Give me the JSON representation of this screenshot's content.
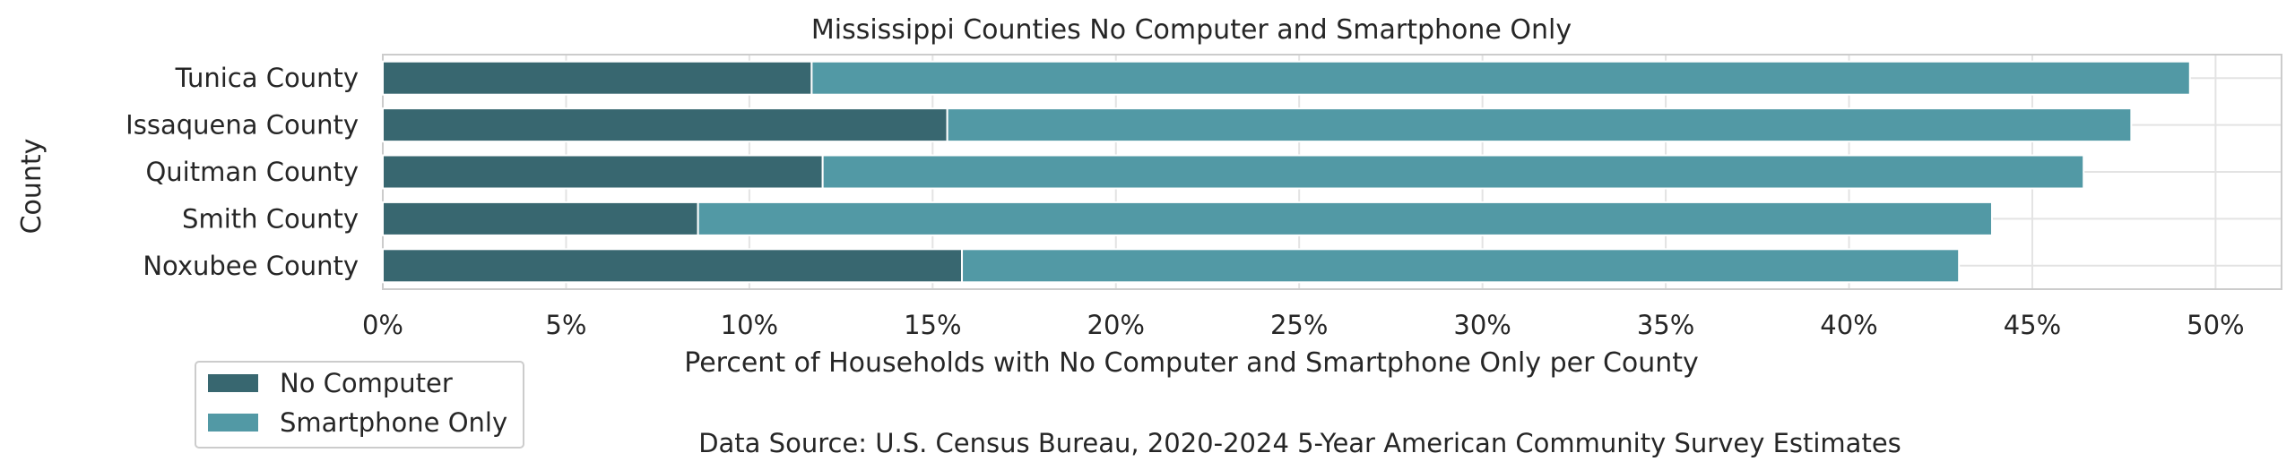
{
  "chart_data": {
    "type": "bar",
    "orientation": "horizontal",
    "stacked": true,
    "title": "Mississippi Counties No Computer and Smartphone Only",
    "xlabel": "Percent of Households with No Computer and Smartphone Only per County",
    "ylabel": "County",
    "categories": [
      "Tunica County",
      "Issaquena County",
      "Quitman County",
      "Smith County",
      "Noxubee County"
    ],
    "series": [
      {
        "name": "No Computer",
        "color": "#386770",
        "values": [
          11.7,
          15.4,
          12.0,
          8.6,
          15.8
        ]
      },
      {
        "name": "Smartphone Only",
        "color": "#5299a5",
        "values": [
          37.6,
          32.3,
          34.4,
          35.3,
          27.2
        ]
      }
    ],
    "xlim": [
      0,
      51.8
    ],
    "xticks": [
      0,
      5,
      10,
      15,
      20,
      25,
      30,
      35,
      40,
      45,
      50
    ],
    "xtick_labels": [
      "0%",
      "5%",
      "10%",
      "15%",
      "20%",
      "25%",
      "30%",
      "35%",
      "40%",
      "45%",
      "50%"
    ],
    "grid": true,
    "legend_position": "bottom-left",
    "source_note": "Data Source: U.S. Census Bureau, 2020-2024 5-Year American Community Survey Estimates"
  }
}
